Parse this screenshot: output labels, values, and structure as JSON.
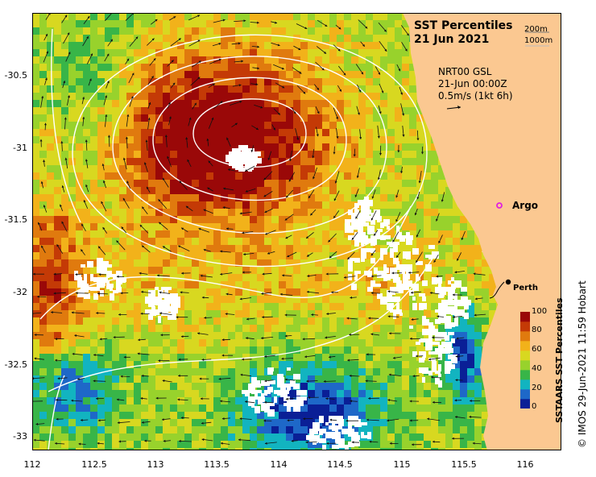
{
  "title": {
    "line1": "SST Percentiles",
    "line2": "21 Jun 2021"
  },
  "scale_legend": {
    "upper": "200m",
    "lower": "1000m"
  },
  "product": {
    "name": "NRT00 GSL",
    "time": "21-Jun 00:00Z",
    "vector_scale": "0.5m/s (1kt 6h)"
  },
  "axes": {
    "x_ticks": [
      "112",
      "112.5",
      "113",
      "113.5",
      "114",
      "114.5",
      "115",
      "115.5",
      "116"
    ],
    "y_ticks": [
      "-30.5",
      "-31",
      "-31.5",
      "-32",
      "-32.5",
      "-33"
    ]
  },
  "colorbar": {
    "title": "SSTAARS SST Percentiles",
    "labels": [
      "100",
      "80",
      "60",
      "40",
      "20",
      "0"
    ],
    "colors": [
      "#0a1f96",
      "#1e68c8",
      "#12b4c0",
      "#38b548",
      "#98d22c",
      "#d8d820",
      "#f2b21a",
      "#e07a0e",
      "#c43a06",
      "#9a0808"
    ]
  },
  "markers": {
    "argo_label": "Argo",
    "city_label": "Perth"
  },
  "credit": "© IMOS 29-Jun-2021 11:59 Hobart",
  "map_colors": {
    "land": "#fbc891",
    "nodata": "#ffffff",
    "contour": "#ffffff",
    "argo": "#e020e0"
  }
}
